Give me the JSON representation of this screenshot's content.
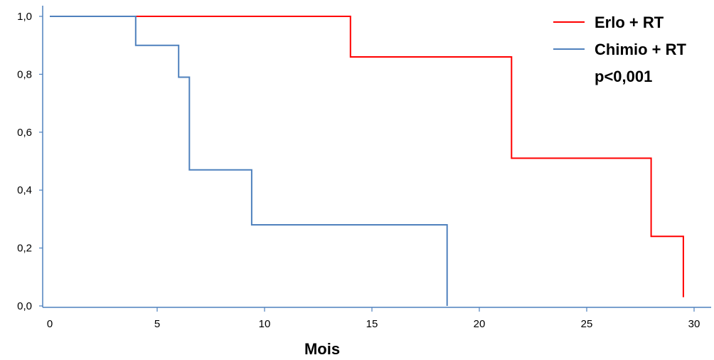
{
  "chart_data": {
    "type": "line",
    "subtype": "kaplan-meier step curve",
    "title": "",
    "xlabel": "Mois",
    "ylabel": "",
    "xlim": [
      0,
      31
    ],
    "ylim": [
      0,
      1.05
    ],
    "x_ticks": [
      0,
      5,
      10,
      15,
      20,
      25,
      30
    ],
    "x_tick_labels": [
      "0",
      "5",
      "10",
      "15",
      "20",
      "25",
      "30"
    ],
    "y_ticks": [
      0,
      0.2,
      0.4,
      0.6,
      0.8,
      1.0
    ],
    "y_tick_labels": [
      "0,0",
      "0,2",
      "0,4",
      "0,6",
      "0,8",
      "1,0"
    ],
    "grid": false,
    "legend_position": "top-right",
    "annotation": "p<0,001",
    "series": [
      {
        "name": "Erlo + RT",
        "color": "#ff0000",
        "points": [
          [
            0,
            1.0
          ],
          [
            14,
            1.0
          ],
          [
            14,
            0.86
          ],
          [
            21.5,
            0.86
          ],
          [
            21.5,
            0.51
          ],
          [
            28,
            0.51
          ],
          [
            28,
            0.24
          ],
          [
            29.5,
            0.24
          ],
          [
            29.5,
            0.03
          ]
        ]
      },
      {
        "name": "Chimio + RT",
        "color": "#4f81bd",
        "points": [
          [
            0,
            1.0
          ],
          [
            4,
            1.0
          ],
          [
            4,
            0.9
          ],
          [
            6,
            0.9
          ],
          [
            6,
            0.79
          ],
          [
            6.5,
            0.79
          ],
          [
            6.5,
            0.47
          ],
          [
            9.4,
            0.47
          ],
          [
            9.4,
            0.28
          ],
          [
            18.5,
            0.28
          ],
          [
            18.5,
            0.0
          ]
        ]
      }
    ]
  }
}
